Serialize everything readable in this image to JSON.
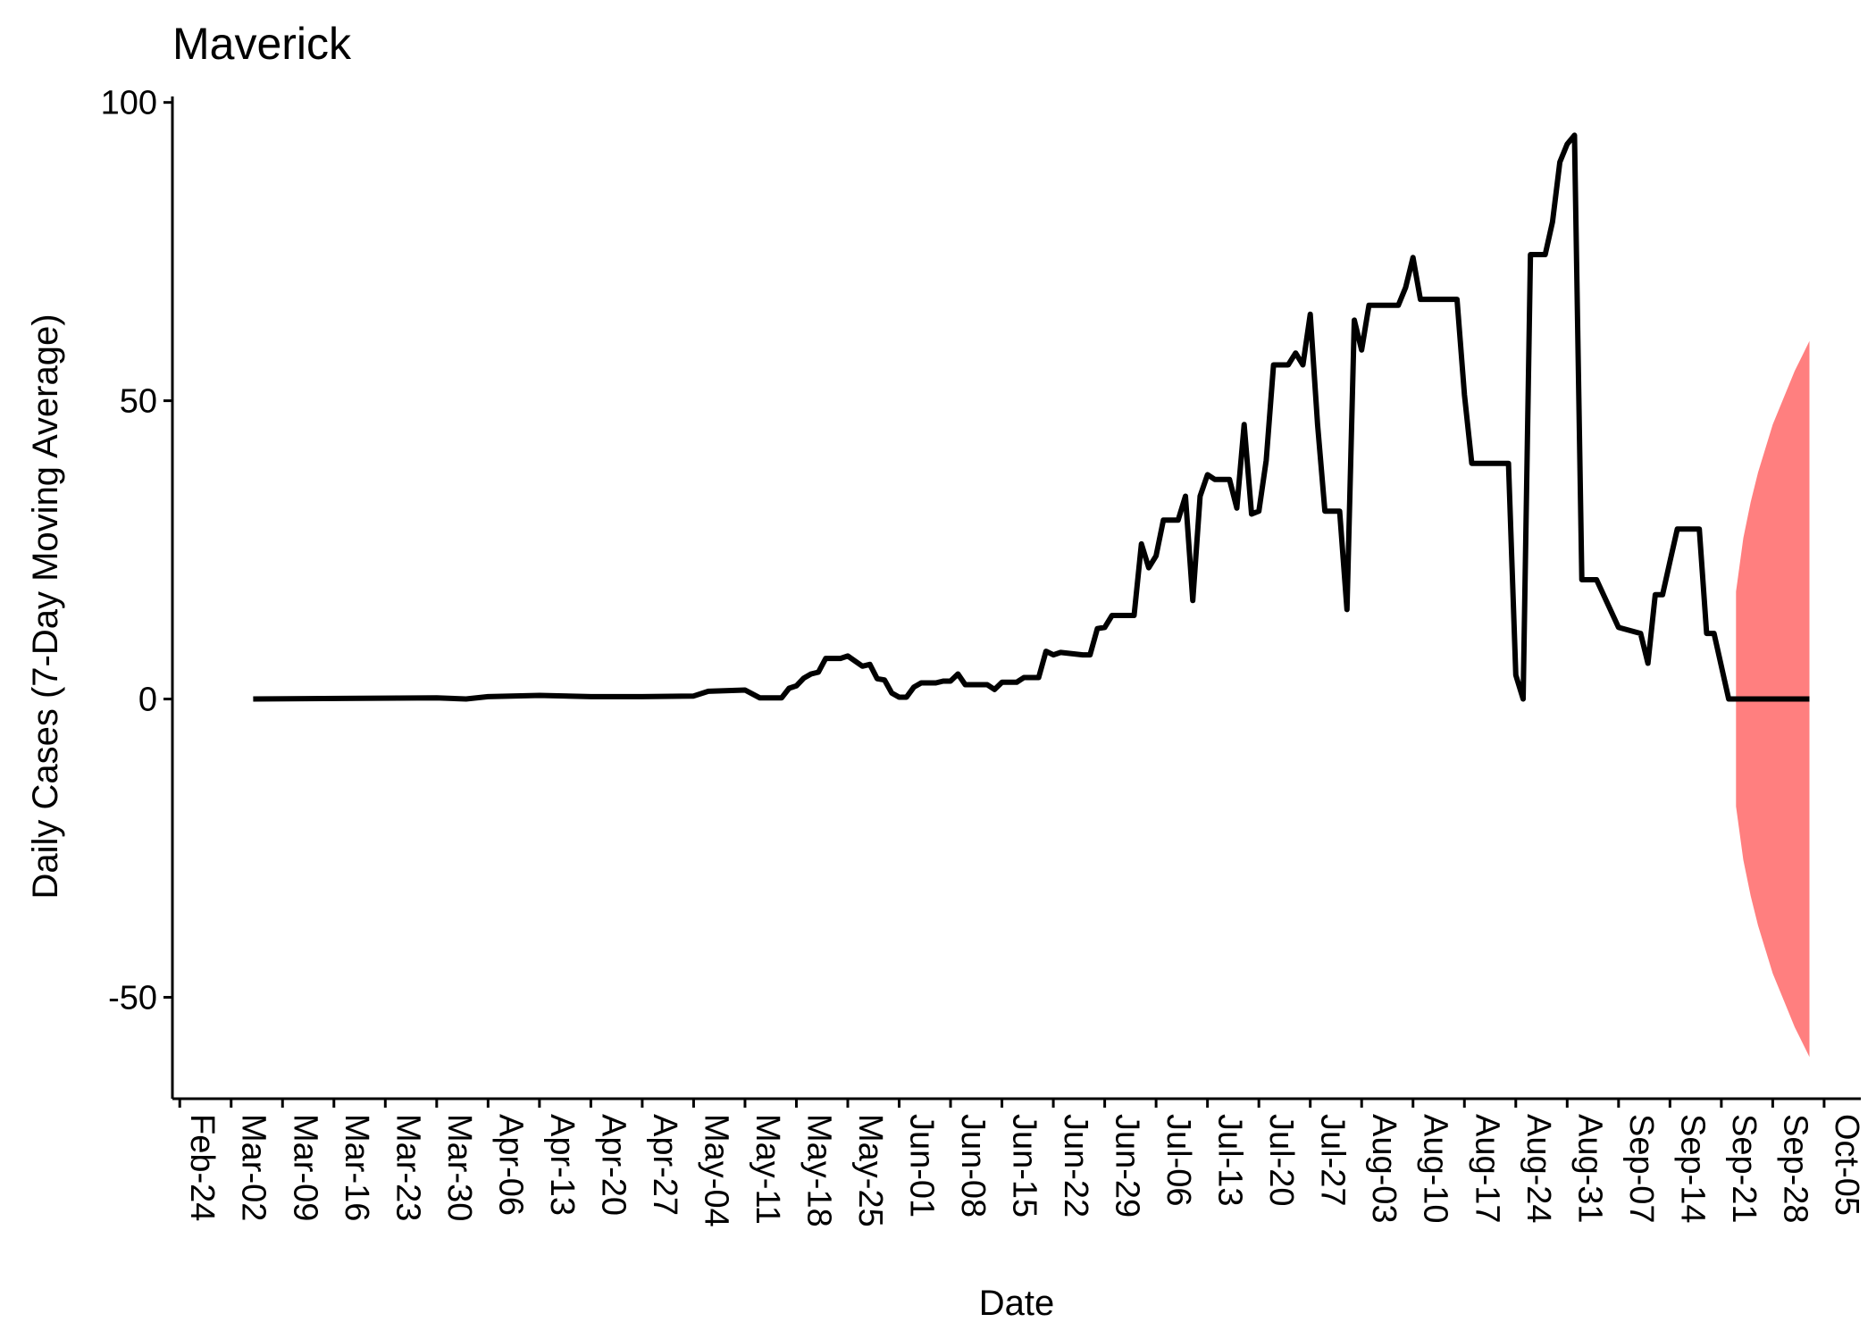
{
  "chart_data": {
    "type": "line",
    "title": "Maverick",
    "xlabel": "Date",
    "ylabel": "Daily Cases (7-Day Moving Average)",
    "ylim": [
      -67,
      101
    ],
    "xlim": [
      "2020-02-23",
      "2020-10-10"
    ],
    "y_ticks": [
      100,
      50,
      0,
      -50
    ],
    "y_tick_labels": [
      "100",
      "50",
      "0",
      "-50"
    ],
    "x_ticks": [
      "2020-02-24",
      "2020-03-02",
      "2020-03-09",
      "2020-03-16",
      "2020-03-23",
      "2020-03-30",
      "2020-04-06",
      "2020-04-13",
      "2020-04-20",
      "2020-04-27",
      "2020-05-04",
      "2020-05-11",
      "2020-05-18",
      "2020-05-25",
      "2020-06-01",
      "2020-06-08",
      "2020-06-15",
      "2020-06-22",
      "2020-06-29",
      "2020-07-06",
      "2020-07-13",
      "2020-07-20",
      "2020-07-27",
      "2020-08-03",
      "2020-08-10",
      "2020-08-17",
      "2020-08-24",
      "2020-08-31",
      "2020-09-07",
      "2020-09-14",
      "2020-09-21",
      "2020-09-28",
      "2020-10-05"
    ],
    "x_tick_labels": [
      "Feb-24",
      "Mar-02",
      "Mar-09",
      "Mar-16",
      "Mar-23",
      "Mar-30",
      "Apr-06",
      "Apr-13",
      "Apr-20",
      "Apr-27",
      "May-04",
      "May-11",
      "May-18",
      "May-25",
      "Jun-01",
      "Jun-08",
      "Jun-15",
      "Jun-22",
      "Jun-29",
      "Jul-06",
      "Jul-13",
      "Jul-20",
      "Jul-27",
      "Aug-03",
      "Aug-10",
      "Aug-17",
      "Aug-24",
      "Aug-31",
      "Sep-07",
      "Sep-14",
      "Sep-21",
      "Sep-28",
      "Oct-05"
    ],
    "grid": false,
    "colors": {
      "line": "#000000",
      "band": "#ff7f7f"
    },
    "series": [
      {
        "values": [
          [
            "2020-03-05",
            0
          ],
          [
            "2020-03-30",
            0.2
          ],
          [
            "2020-04-03",
            0
          ],
          [
            "2020-04-06",
            0.4
          ],
          [
            "2020-04-13",
            0.6
          ],
          [
            "2020-04-20",
            0.4
          ],
          [
            "2020-04-27",
            0.4
          ],
          [
            "2020-05-04",
            0.5
          ],
          [
            "2020-05-06",
            1.3
          ],
          [
            "2020-05-11",
            1.5
          ],
          [
            "2020-05-13",
            0.2
          ],
          [
            "2020-05-16",
            0.2
          ],
          [
            "2020-05-17",
            1.8
          ],
          [
            "2020-05-18",
            2.2
          ],
          [
            "2020-05-19",
            3.5
          ],
          [
            "2020-05-20",
            4.2
          ],
          [
            "2020-05-21",
            4.5
          ],
          [
            "2020-05-22",
            6.8
          ],
          [
            "2020-05-24",
            6.8
          ],
          [
            "2020-05-25",
            7.2
          ],
          [
            "2020-05-27",
            5.5
          ],
          [
            "2020-05-28",
            5.8
          ],
          [
            "2020-05-29",
            3.4
          ],
          [
            "2020-05-30",
            3.2
          ],
          [
            "2020-05-31",
            1.0
          ],
          [
            "2020-06-01",
            0.3
          ],
          [
            "2020-06-02",
            0.3
          ],
          [
            "2020-06-03",
            2.0
          ],
          [
            "2020-06-04",
            2.7
          ],
          [
            "2020-06-06",
            2.7
          ],
          [
            "2020-06-07",
            3.0
          ],
          [
            "2020-06-08",
            3.0
          ],
          [
            "2020-06-09",
            4.2
          ],
          [
            "2020-06-10",
            2.4
          ],
          [
            "2020-06-13",
            2.4
          ],
          [
            "2020-06-14",
            1.6
          ],
          [
            "2020-06-15",
            2.8
          ],
          [
            "2020-06-17",
            2.8
          ],
          [
            "2020-06-18",
            3.6
          ],
          [
            "2020-06-20",
            3.6
          ],
          [
            "2020-06-21",
            8.0
          ],
          [
            "2020-06-22",
            7.4
          ],
          [
            "2020-06-23",
            7.8
          ],
          [
            "2020-06-26",
            7.4
          ],
          [
            "2020-06-27",
            7.4
          ],
          [
            "2020-06-28",
            11.8
          ],
          [
            "2020-06-29",
            12.0
          ],
          [
            "2020-06-30",
            14.0
          ],
          [
            "2020-07-03",
            14.0
          ],
          [
            "2020-07-04",
            26.0
          ],
          [
            "2020-07-05",
            22.0
          ],
          [
            "2020-07-06",
            24.0
          ],
          [
            "2020-07-07",
            30.0
          ],
          [
            "2020-07-09",
            30.0
          ],
          [
            "2020-07-10",
            34.0
          ],
          [
            "2020-07-11",
            16.5
          ],
          [
            "2020-07-12",
            34.0
          ],
          [
            "2020-07-13",
            37.6
          ],
          [
            "2020-07-14",
            36.8
          ],
          [
            "2020-07-16",
            36.8
          ],
          [
            "2020-07-17",
            32.0
          ],
          [
            "2020-07-18",
            46.0
          ],
          [
            "2020-07-19",
            31.0
          ],
          [
            "2020-07-20",
            31.5
          ],
          [
            "2020-07-21",
            40.0
          ],
          [
            "2020-07-22",
            56.0
          ],
          [
            "2020-07-24",
            56.0
          ],
          [
            "2020-07-25",
            58.0
          ],
          [
            "2020-07-26",
            56.0
          ],
          [
            "2020-07-27",
            64.5
          ],
          [
            "2020-07-28",
            46.0
          ],
          [
            "2020-07-29",
            31.5
          ],
          [
            "2020-07-31",
            31.5
          ],
          [
            "2020-08-01",
            15.0
          ],
          [
            "2020-08-02",
            63.5
          ],
          [
            "2020-08-03",
            58.5
          ],
          [
            "2020-08-04",
            66.0
          ],
          [
            "2020-08-08",
            66.0
          ],
          [
            "2020-08-09",
            69.0
          ],
          [
            "2020-08-10",
            74.0
          ],
          [
            "2020-08-11",
            67.0
          ],
          [
            "2020-08-16",
            67.0
          ],
          [
            "2020-08-17",
            51.0
          ],
          [
            "2020-08-18",
            39.5
          ],
          [
            "2020-08-23",
            39.5
          ],
          [
            "2020-08-24",
            4.0
          ],
          [
            "2020-08-25",
            0.0
          ],
          [
            "2020-08-26",
            74.5
          ],
          [
            "2020-08-28",
            74.5
          ],
          [
            "2020-08-29",
            80.0
          ],
          [
            "2020-08-30",
            90.0
          ],
          [
            "2020-08-31",
            93.0
          ],
          [
            "2020-09-01",
            94.5
          ],
          [
            "2020-09-02",
            20.0
          ],
          [
            "2020-09-04",
            20.0
          ],
          [
            "2020-09-07",
            12.0
          ],
          [
            "2020-09-10",
            11.0
          ],
          [
            "2020-09-11",
            6.0
          ],
          [
            "2020-09-12",
            17.5
          ],
          [
            "2020-09-13",
            17.5
          ],
          [
            "2020-09-14",
            23.0
          ],
          [
            "2020-09-15",
            28.5
          ],
          [
            "2020-09-18",
            28.5
          ],
          [
            "2020-09-19",
            11.0
          ],
          [
            "2020-09-20",
            11.0
          ],
          [
            "2020-09-22",
            0.0
          ],
          [
            "2020-10-03",
            0.0
          ]
        ]
      }
    ],
    "forecast_band": {
      "lower": [
        [
          "2020-09-23",
          -18
        ],
        [
          "2020-09-24",
          -27
        ],
        [
          "2020-09-25",
          -33
        ],
        [
          "2020-09-26",
          -38
        ],
        [
          "2020-09-27",
          -42
        ],
        [
          "2020-09-28",
          -46
        ],
        [
          "2020-09-29",
          -49
        ],
        [
          "2020-09-30",
          -52
        ],
        [
          "2020-10-01",
          -55
        ],
        [
          "2020-10-02",
          -57.5
        ],
        [
          "2020-10-03",
          -60
        ]
      ],
      "upper": [
        [
          "2020-09-23",
          18
        ],
        [
          "2020-09-24",
          27
        ],
        [
          "2020-09-25",
          33
        ],
        [
          "2020-09-26",
          38
        ],
        [
          "2020-09-27",
          42
        ],
        [
          "2020-09-28",
          46
        ],
        [
          "2020-09-29",
          49
        ],
        [
          "2020-09-30",
          52
        ],
        [
          "2020-10-01",
          55
        ],
        [
          "2020-10-02",
          57.5
        ],
        [
          "2020-10-03",
          60
        ]
      ]
    }
  }
}
